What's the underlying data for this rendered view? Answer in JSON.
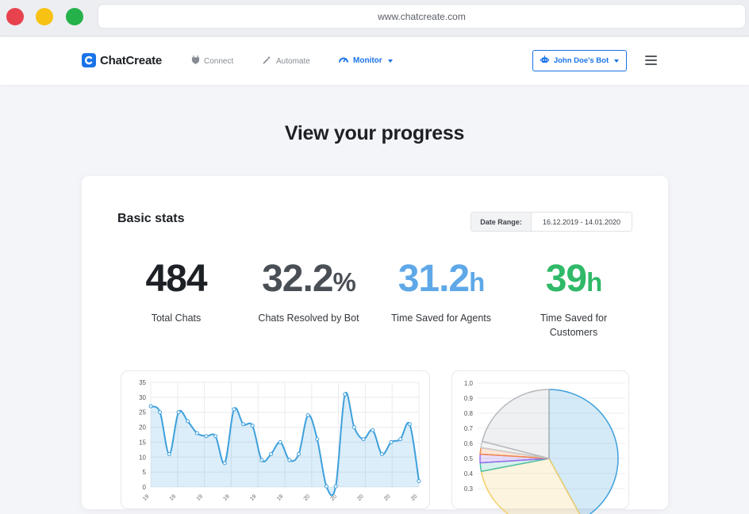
{
  "browser": {
    "url": "www.chatcreate.com"
  },
  "nav": {
    "brand": "ChatCreate",
    "links": [
      {
        "label": "Connect",
        "icon": "plug-icon"
      },
      {
        "label": "Automate",
        "icon": "magic-wand-icon"
      },
      {
        "label": "Monitor",
        "icon": "gauge-icon",
        "active": true
      }
    ],
    "bot_button": "John Doe's Bot",
    "accent_color": "#1a73e8"
  },
  "page": {
    "title": "View your progress"
  },
  "card": {
    "title": "Basic stats",
    "date_range": {
      "label": "Date Range:",
      "value": "16.12.2019 - 14.01.2020"
    },
    "stats": [
      {
        "value": "484",
        "unit": "",
        "label": "Total Chats",
        "color": "#1d2024"
      },
      {
        "value": "32.2",
        "unit": "%",
        "label": "Chats Resolved by Bot",
        "color": "#4a4f56"
      },
      {
        "value": "31.2",
        "unit": "h",
        "label": "Time Saved for Agents",
        "color": "#5fa8e8"
      },
      {
        "value": "39",
        "unit": "h",
        "label": "Time Saved for Customers",
        "color": "#2fb968"
      }
    ]
  },
  "chart_data": [
    {
      "type": "area",
      "x_tick_labels": [
        "19",
        "19",
        "19",
        "19",
        "19",
        "19",
        "20",
        "20",
        "20",
        "20",
        "20"
      ],
      "values": [
        27,
        25,
        11,
        25,
        22,
        18,
        17,
        17,
        8,
        26,
        21,
        20.5,
        9,
        11,
        15,
        9,
        11,
        24,
        16,
        0.2,
        0.2,
        31,
        20,
        16,
        19,
        11,
        15,
        16,
        21,
        2
      ],
      "ylim": [
        0,
        35
      ],
      "y_ticks": [
        0,
        5,
        10,
        15,
        20,
        25,
        30,
        35
      ],
      "grid": true,
      "color": "#3ea0dc"
    },
    {
      "type": "pie",
      "slices": [
        {
          "value": 0.42,
          "color": "#3ea0dc"
        },
        {
          "value": 0.3,
          "color": "#f3cf6b"
        },
        {
          "value": 0.02,
          "color": "#4bc0a8"
        },
        {
          "value": 0.02,
          "color": "#9a6bf0"
        },
        {
          "value": 0.015,
          "color": "#f08a4b"
        },
        {
          "value": 0.015,
          "color": "#c9cbcf"
        },
        {
          "value": 0.21,
          "color": "#b7b9bd"
        }
      ],
      "y_ticks": [
        "0.3",
        "0.4",
        "0.5",
        "0.6",
        "0.7",
        "0.8",
        "0.9",
        "1.0"
      ]
    }
  ]
}
